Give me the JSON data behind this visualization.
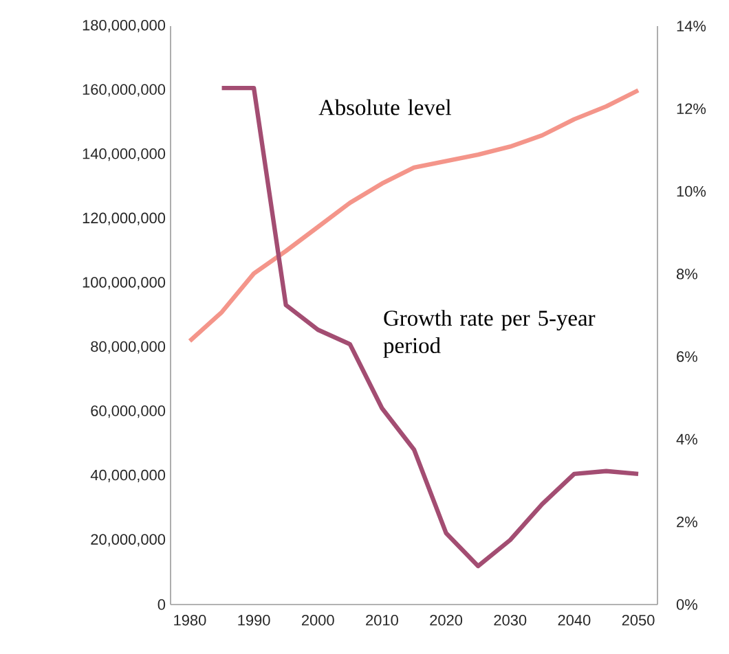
{
  "chart_data": {
    "type": "line",
    "x": [
      1980,
      1985,
      1990,
      1995,
      2000,
      2005,
      2010,
      2015,
      2020,
      2025,
      2030,
      2035,
      2040,
      2045,
      2050
    ],
    "series": [
      {
        "name": "Absolute level",
        "color": "#f4958a",
        "values": [
          82000000,
          91000000,
          103000000,
          110000000,
          117500000,
          125000000,
          131000000,
          136000000,
          138000000,
          140000000,
          142500000,
          146000000,
          151000000,
          155000000,
          160000000
        ]
      },
      {
        "name": "Growth rate per 5-year period",
        "color": "#a34d72",
        "axis": "y2",
        "x": [
          1985,
          1990,
          1995,
          2000,
          2005,
          2010,
          2015,
          2020,
          2025,
          2030,
          2035,
          2040,
          2045,
          2050
        ],
        "values": [
          12.5,
          12.5,
          7.25,
          6.65,
          6.3,
          4.75,
          3.75,
          1.73,
          0.93,
          1.56,
          2.43,
          3.16,
          3.23,
          3.16
        ]
      }
    ],
    "xlim": [
      1977,
      2053
    ],
    "xticks": [
      1980,
      1990,
      2000,
      2010,
      2020,
      2030,
      2040,
      2050
    ],
    "ylim": [
      0,
      180000000
    ],
    "yticks": [
      {
        "value": 0,
        "label": "0"
      },
      {
        "value": 20000000,
        "label": "20,000,000"
      },
      {
        "value": 40000000,
        "label": "40,000,000"
      },
      {
        "value": 60000000,
        "label": "60,000,000"
      },
      {
        "value": 80000000,
        "label": "80,000,000"
      },
      {
        "value": 100000000,
        "label": "100,000,000"
      },
      {
        "value": 120000000,
        "label": "120,000,000"
      },
      {
        "value": 140000000,
        "label": "140,000,000"
      },
      {
        "value": 160000000,
        "label": "160,000,000"
      },
      {
        "value": 180000000,
        "label": "180,000,000"
      }
    ],
    "y2lim": [
      0,
      14
    ],
    "y2ticks": [
      {
        "value": 0,
        "label": "0%"
      },
      {
        "value": 2,
        "label": "2%"
      },
      {
        "value": 4,
        "label": "4%"
      },
      {
        "value": 6,
        "label": "6%"
      },
      {
        "value": 8,
        "label": "8%"
      },
      {
        "value": 10,
        "label": "10%"
      },
      {
        "value": 12,
        "label": "12%"
      },
      {
        "value": 14,
        "label": "14%"
      }
    ],
    "grid": false,
    "legend": false,
    "marker": "none",
    "line_style": "solid"
  }
}
